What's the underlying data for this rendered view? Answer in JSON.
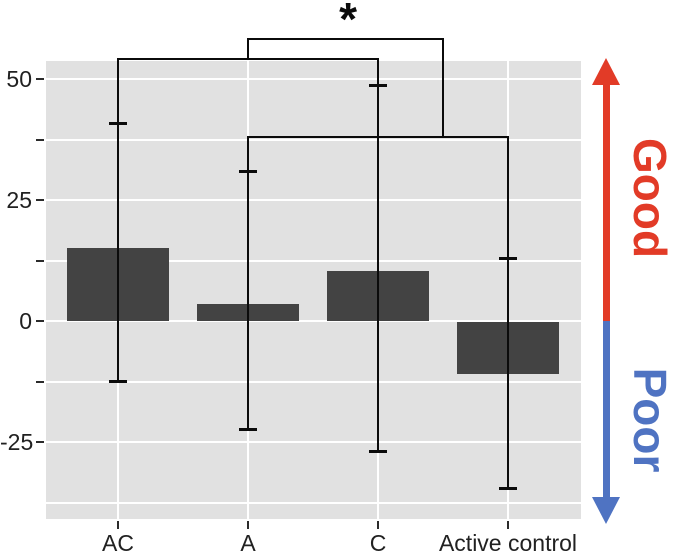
{
  "chart_data": {
    "type": "bar",
    "title": "",
    "xlabel": "",
    "ylabel": "",
    "categories": [
      "AC",
      "A",
      "C",
      "Active control"
    ],
    "values": [
      15,
      3.5,
      10.3,
      -11
    ],
    "error_low": [
      -12.5,
      -22.5,
      -27,
      -34.7
    ],
    "error_high": [
      41,
      31,
      48.8,
      13
    ],
    "ylim": [
      -41,
      54
    ],
    "grid": "on",
    "legend": "none",
    "bar_color": "#434343",
    "panel_color": "#e1e1e1",
    "gridline_color": "#ffffff",
    "y_ticks": [
      {
        "value": 50,
        "label": "50"
      },
      {
        "value": 37.5,
        "label": ""
      },
      {
        "value": 25,
        "label": "25"
      },
      {
        "value": 12.5,
        "label": ""
      },
      {
        "value": 0,
        "label": "0"
      },
      {
        "value": -12.5,
        "label": ""
      },
      {
        "value": -25,
        "label": "-25"
      }
    ],
    "h_gridlines": [
      50,
      37.5,
      25,
      12.5,
      0,
      -12.5,
      -25,
      -37.5
    ],
    "significance": {
      "label": "*",
      "label_pos": {
        "u": 1.77,
        "v": 62.5
      },
      "segments": [
        {
          "u1": 1.0,
          "v1": 58.3,
          "u2": 2.5,
          "v2": 58.3
        },
        {
          "u1": 1.0,
          "v1": 58.3,
          "u2": 1.0,
          "v2": 54.1
        },
        {
          "u1": 2.5,
          "v1": 58.3,
          "u2": 2.5,
          "v2": 38.0
        },
        {
          "u1": 0,
          "v1": 54.1,
          "u2": 2,
          "v2": 54.1
        },
        {
          "u1": 0,
          "v1": 54.1,
          "u2": 0,
          "v2": 41
        },
        {
          "u1": 2,
          "v1": 54.1,
          "u2": 2,
          "v2": 48.8
        },
        {
          "u1": 1,
          "v1": 38.0,
          "u2": 3,
          "v2": 38.0
        },
        {
          "u1": 1,
          "v1": 38.0,
          "u2": 1,
          "v2": 31
        },
        {
          "u1": 3,
          "v1": 38.0,
          "u2": 3,
          "v2": 13
        }
      ]
    }
  },
  "annotations": {
    "good_label": "Good",
    "poor_label": "Poor",
    "good_color": "#e23b27",
    "poor_color": "#4f73c2"
  }
}
